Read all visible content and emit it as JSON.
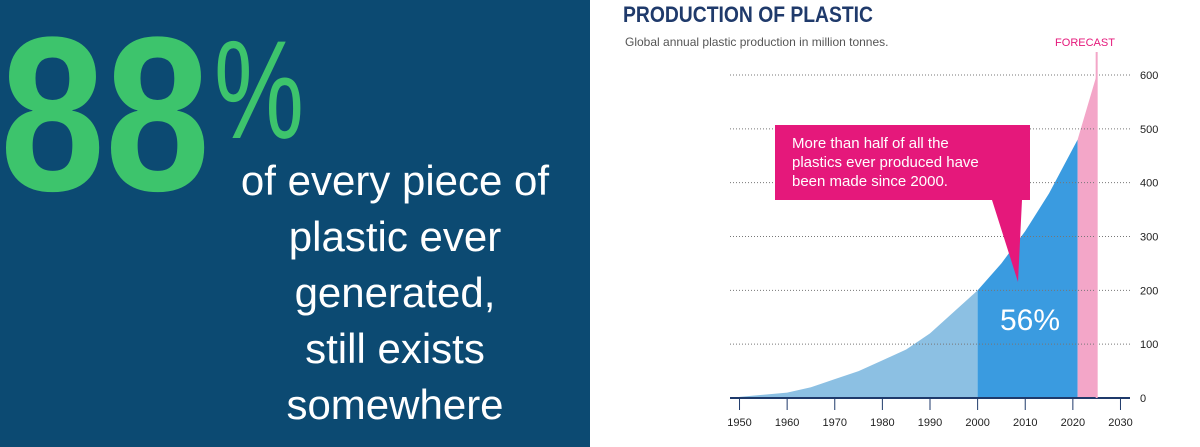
{
  "infographic": {
    "stat": "88",
    "stat_unit": "%",
    "lines": [
      "of every piece of",
      "plastic ever",
      "generated,",
      "still exists",
      "somewhere"
    ]
  },
  "chart_data": {
    "type": "area",
    "title": "PRODUCTION OF PLASTIC",
    "subtitle": "Global annual plastic production in million tonnes.",
    "forecast_label": "FORECAST",
    "annotation": [
      "More than half of all the",
      "plastics ever produced have",
      "been made since 2000."
    ],
    "share_label": "56%",
    "series": [
      {
        "color": "#8cc0e3",
        "x": [
          1950,
          1955,
          1960,
          1965,
          1970,
          1975,
          1980,
          1985,
          1990,
          1995,
          2000
        ],
        "values": [
          2,
          6,
          10,
          20,
          35,
          50,
          70,
          90,
          120,
          160,
          200
        ]
      },
      {
        "color": "#3a9be0",
        "x": [
          2000,
          2005,
          2010,
          2015,
          2021
        ],
        "values": [
          200,
          250,
          310,
          380,
          480
        ]
      },
      {
        "color": "#f3a6c8",
        "x": [
          2021,
          2025
        ],
        "values": [
          480,
          600
        ]
      }
    ],
    "xlim": [
      1948,
      2032
    ],
    "xticks": [
      1950,
      1960,
      1970,
      1980,
      1990,
      2000,
      2010,
      2020,
      2030
    ],
    "ylim": [
      0,
      600
    ],
    "yticks": [
      0,
      100,
      200,
      300,
      400,
      500,
      600
    ],
    "grid": true
  }
}
